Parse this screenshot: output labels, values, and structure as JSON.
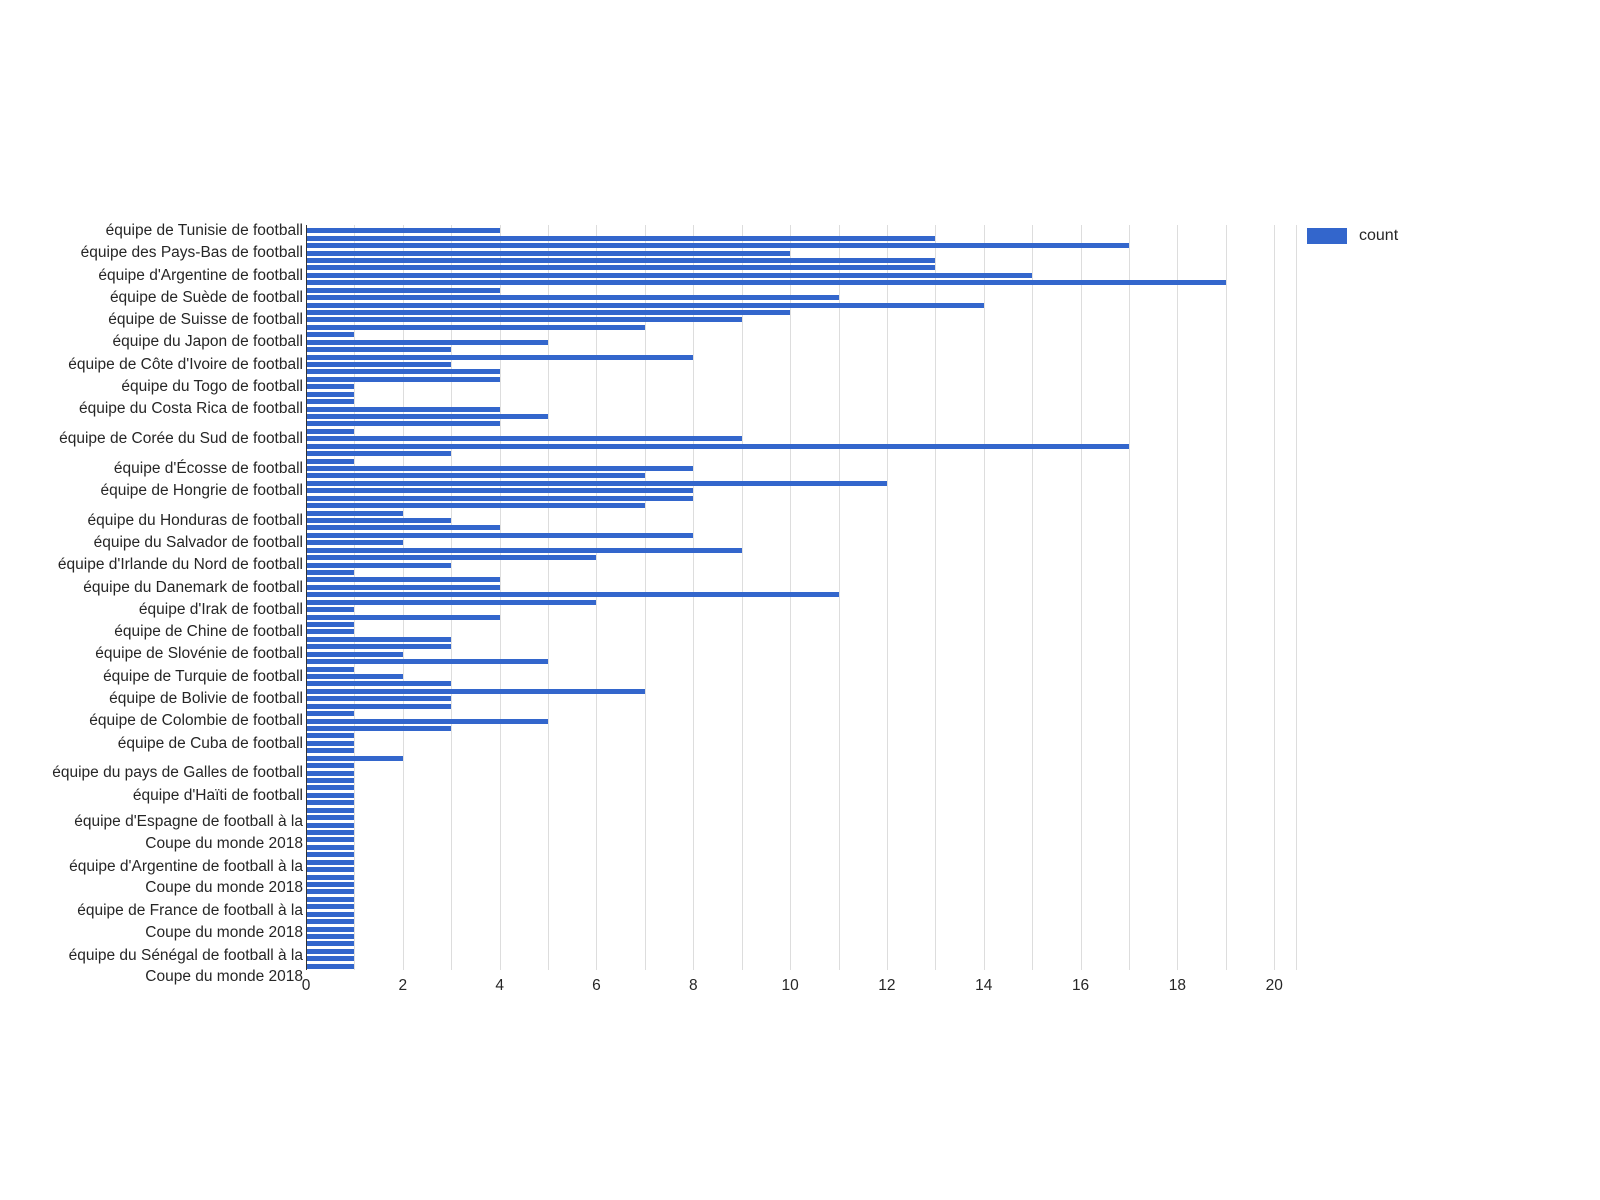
{
  "chart_data": {
    "type": "bar",
    "orientation": "horizontal",
    "title": "",
    "xlabel": "",
    "ylabel": "",
    "legend_label": "count",
    "legend_position": "top-right",
    "bar_color": "#3366cc",
    "grid": true,
    "gridline_color": "#dddddd",
    "axis_line_color": "#333333",
    "text_color": "#262626",
    "xlim": [
      0,
      20.45
    ],
    "x_ticks": [
      0,
      2,
      4,
      6,
      8,
      10,
      12,
      14,
      16,
      18,
      20
    ],
    "values": [
      4,
      13,
      17,
      10,
      13,
      13,
      15,
      19,
      4,
      11,
      14,
      10,
      9,
      7,
      1,
      5,
      3,
      8,
      3,
      4,
      4,
      1,
      1,
      1,
      4,
      5,
      4,
      1,
      9,
      17,
      3,
      1,
      8,
      7,
      12,
      8,
      8,
      7,
      2,
      3,
      4,
      8,
      2,
      9,
      6,
      3,
      1,
      4,
      4,
      11,
      6,
      1,
      4,
      1,
      1,
      3,
      3,
      2,
      5,
      1,
      2,
      3,
      7,
      3,
      3,
      1,
      5,
      3,
      1,
      1,
      1,
      2,
      1,
      1,
      1,
      1,
      1,
      1,
      1,
      1,
      1,
      1,
      1,
      1,
      1,
      1,
      1,
      1,
      1,
      1,
      1,
      1,
      1,
      1,
      1,
      1,
      1,
      1,
      1,
      1
    ],
    "tick_labels": [
      {
        "bar_index": 0,
        "lines": [
          "équipe de Tunisie de football"
        ]
      },
      {
        "bar_index": 3,
        "lines": [
          "équipe des Pays-Bas de football"
        ]
      },
      {
        "bar_index": 6,
        "lines": [
          "équipe d'Argentine de football"
        ]
      },
      {
        "bar_index": 9,
        "lines": [
          "équipe de Suède de football"
        ]
      },
      {
        "bar_index": 12,
        "lines": [
          "équipe de Suisse de football"
        ]
      },
      {
        "bar_index": 15,
        "lines": [
          "équipe du Japon de football"
        ]
      },
      {
        "bar_index": 18,
        "lines": [
          "équipe de Côte d'Ivoire de football"
        ]
      },
      {
        "bar_index": 21,
        "lines": [
          "équipe du Togo de football"
        ]
      },
      {
        "bar_index": 24,
        "lines": [
          "équipe du Costa Rica de football"
        ]
      },
      {
        "bar_index": 28,
        "lines": [
          "équipe de Corée du Sud de football"
        ]
      },
      {
        "bar_index": 32,
        "lines": [
          "équipe d'Écosse de football"
        ]
      },
      {
        "bar_index": 35,
        "lines": [
          "équipe de Hongrie de football"
        ]
      },
      {
        "bar_index": 39,
        "lines": [
          "équipe du Honduras de football"
        ]
      },
      {
        "bar_index": 42,
        "lines": [
          "équipe du Salvador de football"
        ]
      },
      {
        "bar_index": 45,
        "lines": [
          "équipe d'Irlande du Nord de football"
        ]
      },
      {
        "bar_index": 48,
        "lines": [
          "équipe du Danemark de football"
        ]
      },
      {
        "bar_index": 51,
        "lines": [
          "équipe d'Irak de football"
        ]
      },
      {
        "bar_index": 54,
        "lines": [
          "équipe de Chine de football"
        ]
      },
      {
        "bar_index": 57,
        "lines": [
          "équipe de Slovénie de football"
        ]
      },
      {
        "bar_index": 60,
        "lines": [
          "équipe de Turquie de football"
        ]
      },
      {
        "bar_index": 63,
        "lines": [
          "équipe de Bolivie de football"
        ]
      },
      {
        "bar_index": 66,
        "lines": [
          "équipe de Colombie de football"
        ]
      },
      {
        "bar_index": 69,
        "lines": [
          "équipe de Cuba de football"
        ]
      },
      {
        "bar_index": 73,
        "lines": [
          "équipe du pays de Galles de football"
        ]
      },
      {
        "bar_index": 76,
        "lines": [
          "équipe d'Haïti de football"
        ]
      },
      {
        "bar_index": 81,
        "lines": [
          "équipe d'Espagne de football à la",
          "Coupe du monde 2018"
        ]
      },
      {
        "bar_index": 87,
        "lines": [
          "équipe d'Argentine de football à la",
          "Coupe du monde 2018"
        ]
      },
      {
        "bar_index": 93,
        "lines": [
          "équipe de France de football à la",
          "Coupe du monde 2018"
        ]
      },
      {
        "bar_index": 99,
        "lines": [
          "équipe du Sénégal de football à la",
          "Coupe du monde 2018"
        ]
      }
    ]
  }
}
